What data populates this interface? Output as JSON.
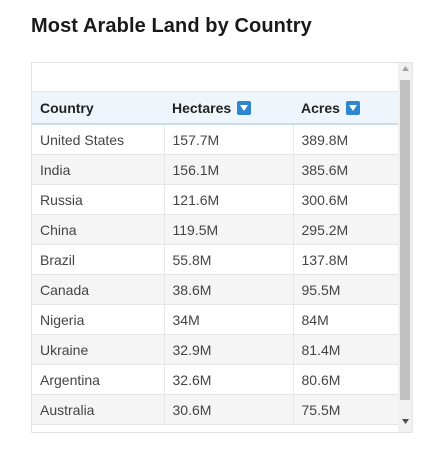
{
  "page": {
    "title": "Most Arable Land by Country"
  },
  "table": {
    "columns": [
      {
        "label": "Country",
        "sortable": false
      },
      {
        "label": "Hectares",
        "sortable": true
      },
      {
        "label": "Acres",
        "sortable": true
      }
    ],
    "rows": [
      {
        "country": "United States",
        "hectares": "157.7M",
        "acres": "389.8M"
      },
      {
        "country": "India",
        "hectares": "156.1M",
        "acres": "385.6M"
      },
      {
        "country": "Russia",
        "hectares": "121.6M",
        "acres": "300.6M"
      },
      {
        "country": "China",
        "hectares": "119.5M",
        "acres": "295.2M"
      },
      {
        "country": "Brazil",
        "hectares": "55.8M",
        "acres": "137.8M"
      },
      {
        "country": "Canada",
        "hectares": "38.6M",
        "acres": "95.5M"
      },
      {
        "country": "Nigeria",
        "hectares": "34M",
        "acres": "84M"
      },
      {
        "country": "Ukraine",
        "hectares": "32.9M",
        "acres": "81.4M"
      },
      {
        "country": "Argentina",
        "hectares": "32.6M",
        "acres": "80.6M"
      },
      {
        "country": "Australia",
        "hectares": "30.6M",
        "acres": "75.5M"
      }
    ]
  },
  "icons": {
    "sort": "sort-down-icon",
    "scroll_up": "chevron-up-icon",
    "scroll_down": "chevron-down-icon"
  },
  "colors": {
    "link": "#2a7ab8",
    "header_bg": "#eef6fc",
    "sort_button": "#2e86cf",
    "scroll_thumb": "#c1c1c1"
  }
}
